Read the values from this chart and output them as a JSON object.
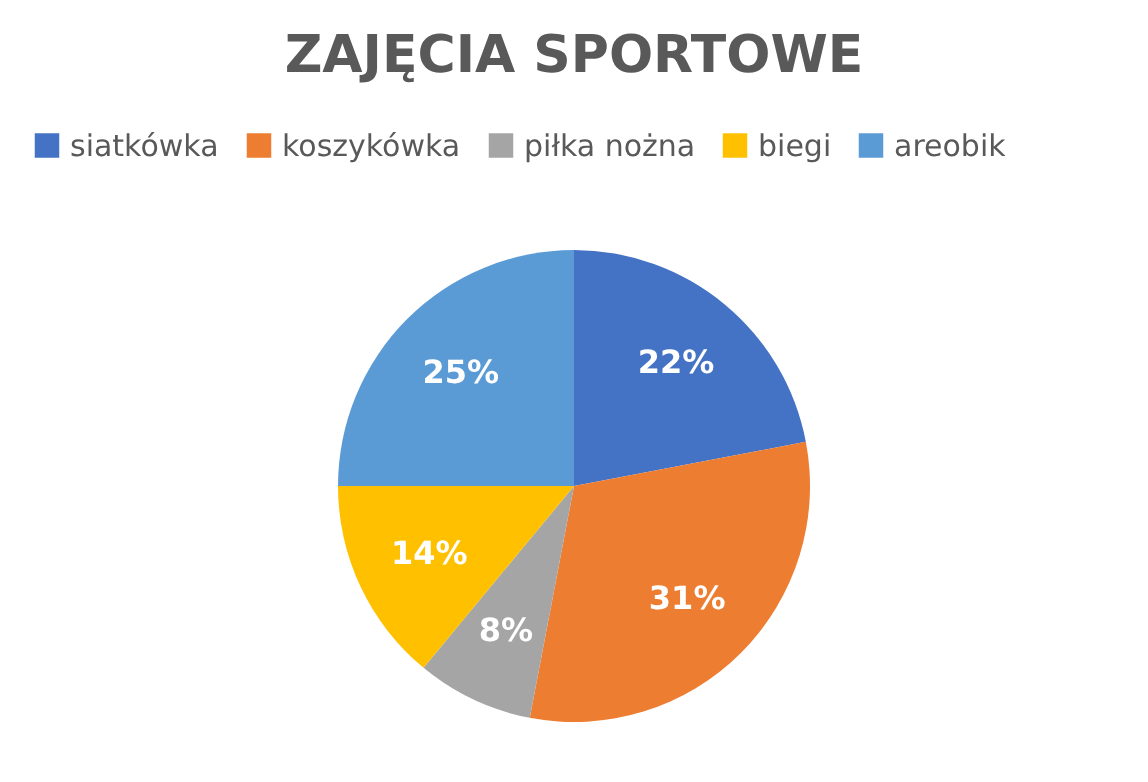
{
  "chart_data": {
    "type": "pie",
    "title": "ZAJĘCIA SPORTOWE",
    "categories": [
      "siatkówka",
      "koszykówka",
      "piłka nożna",
      "biegi",
      "areobik"
    ],
    "values": [
      22,
      31,
      8,
      14,
      25
    ],
    "value_labels": [
      "22%",
      "31%",
      "8%",
      "14%",
      "25%"
    ],
    "colors": [
      "#4472c4",
      "#ed7d31",
      "#a5a5a5",
      "#ffc000",
      "#5b9bd5"
    ],
    "legend": "top"
  }
}
